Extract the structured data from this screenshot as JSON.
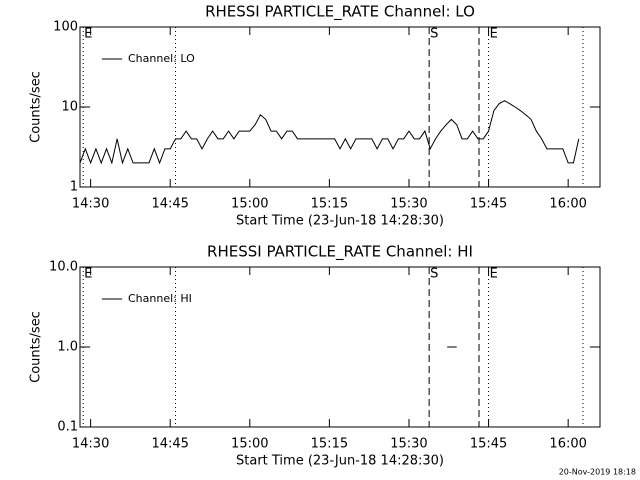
{
  "chart_data": [
    {
      "type": "line",
      "title": "RHESSI PARTICLE_RATE Channel: LO",
      "xlabel": "Start Time (23-Jun-18 14:28:30)",
      "ylabel": "Counts/sec",
      "x": [
        868,
        869,
        870,
        871,
        872,
        873,
        874,
        875,
        876,
        877,
        878,
        879,
        880,
        881,
        882,
        883,
        884,
        885,
        886,
        887,
        888,
        889,
        890,
        891,
        892,
        893,
        894,
        895,
        896,
        897,
        898,
        899,
        900,
        901,
        902,
        903,
        904,
        905,
        906,
        907,
        908,
        909,
        910,
        911,
        912,
        913,
        914,
        915,
        916,
        917,
        918,
        919,
        920,
        921,
        922,
        923,
        924,
        925,
        926,
        927,
        928,
        929,
        930,
        931,
        932,
        933,
        934,
        935,
        936,
        937,
        938,
        939,
        940,
        941,
        942,
        943,
        944,
        945,
        946,
        947,
        948,
        949,
        950,
        951,
        952,
        953,
        954,
        955,
        956,
        957,
        958,
        959,
        960,
        961,
        962
      ],
      "series": [
        {
          "name": "Channel: LO",
          "color": "#000000",
          "values": [
            2,
            3,
            2,
            3,
            2,
            3,
            2,
            4,
            2,
            3,
            2,
            2,
            2,
            2,
            3,
            2,
            3,
            3,
            4,
            4,
            5,
            4,
            4,
            3,
            4,
            5,
            4,
            4,
            5,
            4,
            5,
            5,
            5,
            6,
            8,
            7,
            5,
            5,
            4,
            5,
            5,
            4,
            4,
            4,
            4,
            4,
            4,
            4,
            4,
            3,
            4,
            3,
            4,
            4,
            4,
            4,
            3,
            4,
            4,
            3,
            4,
            4,
            5,
            4,
            4,
            5,
            3,
            4,
            5,
            6,
            7,
            6,
            4,
            4,
            5,
            4,
            4,
            5,
            9,
            11,
            12,
            11,
            10,
            9,
            8,
            7,
            5,
            4,
            3,
            3,
            3,
            3,
            2,
            2,
            4
          ]
        }
      ],
      "xlim": [
        868,
        966
      ],
      "xticks": [
        {
          "value": 870,
          "label": "14:30"
        },
        {
          "value": 885,
          "label": "14:45"
        },
        {
          "value": 900,
          "label": "15:00"
        },
        {
          "value": 915,
          "label": "15:15"
        },
        {
          "value": 930,
          "label": "15:30"
        },
        {
          "value": 945,
          "label": "15:45"
        },
        {
          "value": 960,
          "label": "16:00"
        }
      ],
      "ylim": [
        1,
        100
      ],
      "yticks": [
        1,
        10,
        100
      ],
      "log_y": true,
      "markers": [
        {
          "x": 868.6,
          "style": "dotted",
          "label": "E"
        },
        {
          "x": 886,
          "style": "dotted"
        },
        {
          "x": 933.8,
          "style": "dashed",
          "label": "S"
        },
        {
          "x": 943.2,
          "style": "dashed"
        },
        {
          "x": 945,
          "style": "dotted",
          "label": "E"
        },
        {
          "x": 962.8,
          "style": "dotted"
        }
      ]
    },
    {
      "type": "line",
      "title": "RHESSI PARTICLE_RATE Channel: HI",
      "xlabel": "Start Time (23-Jun-18 14:28:30)",
      "ylabel": "Counts/sec",
      "x": [
        937.2,
        939
      ],
      "series": [
        {
          "name": "Channel: HI",
          "color": "#000000",
          "values": [
            1,
            1
          ]
        }
      ],
      "xlim": [
        868,
        966
      ],
      "xticks": [
        {
          "value": 870,
          "label": "14:30"
        },
        {
          "value": 885,
          "label": "14:45"
        },
        {
          "value": 900,
          "label": "15:00"
        },
        {
          "value": 915,
          "label": "15:15"
        },
        {
          "value": 930,
          "label": "15:30"
        },
        {
          "value": 945,
          "label": "15:45"
        },
        {
          "value": 960,
          "label": "16:00"
        }
      ],
      "ylim": [
        0.1,
        10
      ],
      "yticks": [
        0.1,
        {
          "value": 1,
          "label": "1.0"
        },
        {
          "value": 10,
          "label": "10.0"
        }
      ],
      "log_y": true,
      "markers": [
        {
          "x": 868.6,
          "style": "dotted",
          "label": "E"
        },
        {
          "x": 886,
          "style": "dotted"
        },
        {
          "x": 933.8,
          "style": "dashed",
          "label": "S"
        },
        {
          "x": 943.2,
          "style": "dashed"
        },
        {
          "x": 945,
          "style": "dotted",
          "label": "E"
        },
        {
          "x": 962.8,
          "style": "dotted"
        }
      ]
    }
  ],
  "footer": "20-Nov-2019 18:18"
}
